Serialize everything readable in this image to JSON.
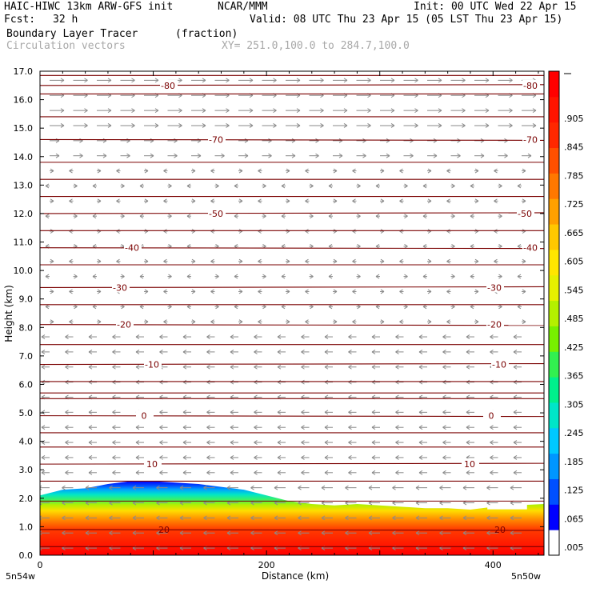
{
  "header": {
    "model": "HAIC-HIWC 13km ARW-GFS init",
    "org": "NCAR/MMM",
    "init": "Init: 00 UTC Wed 22 Apr 15",
    "fcst_label": "Fcst:",
    "fcst_value": "32 h",
    "valid": "Valid: 08 UTC Thu 23 Apr 15 (05 LST Thu 23 Apr 15)",
    "field": "Boundary Layer Tracer",
    "field_units": "(fraction)",
    "vectors": "Circulation vectors",
    "xy": "XY= 251.0,100.0 to 284.7,100.0"
  },
  "chart_data": {
    "type": "heatmap",
    "xlabel": "Distance (km)",
    "ylabel": "Height (km)",
    "xlim": [
      0,
      445
    ],
    "ylim": [
      0,
      17
    ],
    "x_ticks": [
      0,
      200,
      400
    ],
    "y_ticks": [
      "0.0",
      "1.0",
      "2.0",
      "3.0",
      "4.0",
      "5.0",
      "6.0",
      "7.0",
      "8.0",
      "9.0",
      "10.0",
      "11.0",
      "12.0",
      "13.0",
      "14.0",
      "15.0",
      "16.0",
      "17.0"
    ],
    "x_end_labels": {
      "left": "5n54w",
      "right": "5n50w"
    },
    "tracer_top_km": {
      "x": [
        0,
        20,
        40,
        60,
        80,
        100,
        120,
        140,
        160,
        180,
        200,
        220,
        240,
        260,
        280,
        300,
        320,
        340,
        360,
        380,
        400,
        420,
        445
      ],
      "top": [
        2.1,
        2.3,
        2.35,
        2.5,
        2.6,
        2.6,
        2.55,
        2.5,
        2.4,
        2.3,
        2.1,
        1.9,
        1.8,
        1.75,
        1.8,
        1.75,
        1.7,
        1.65,
        1.65,
        1.6,
        1.7,
        1.75,
        1.8
      ]
    },
    "temperature_isotherms_C": [
      {
        "label": "-80",
        "height_km": 16.5
      },
      {
        "label": "-70",
        "height_km": 14.6
      },
      {
        "label": "-50",
        "height_km": 12.0
      },
      {
        "label": "-40",
        "height_km": 10.8
      },
      {
        "label": "-30",
        "height_km": 9.4
      },
      {
        "label": "-20",
        "height_km": 8.1
      },
      {
        "label": "-10",
        "height_km": 6.7
      },
      {
        "label": "0",
        "height_km": 4.9
      },
      {
        "label": "10",
        "height_km": 3.2
      },
      {
        "label": "20",
        "height_km": 0.9
      }
    ],
    "colorbar": {
      "labels": [
        ".905",
        ".845",
        ".785",
        ".725",
        ".665",
        ".605",
        ".545",
        ".485",
        ".425",
        ".365",
        ".305",
        ".245",
        ".185",
        ".125",
        ".065",
        ".005"
      ],
      "colors": [
        "#ffffff",
        "#0000ff",
        "#0050ff",
        "#0096ff",
        "#00c8ff",
        "#00e6c8",
        "#00f08c",
        "#32f050",
        "#78f000",
        "#b4f000",
        "#e6f000",
        "#ffe600",
        "#ffc800",
        "#ffa000",
        "#ff7800",
        "#ff5000",
        "#ff2800",
        "#ff1400",
        "#ff0000"
      ]
    }
  }
}
